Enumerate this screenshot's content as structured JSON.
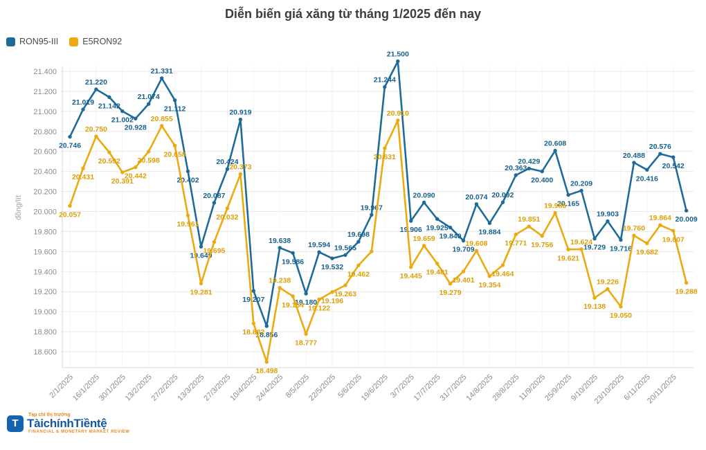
{
  "title": "Diễn biến giá xăng từ tháng 1/2025 đến nay",
  "legend": {
    "items": [
      {
        "label": "RON95-III",
        "color": "#1E6B99"
      },
      {
        "label": "E5RON92",
        "color": "#EBA912"
      }
    ]
  },
  "y_axis": {
    "title": "đồng/lít",
    "tick_labels": [
      "18.600",
      "18.800",
      "19.000",
      "19.200",
      "19.400",
      "19.600",
      "19.800",
      "20.000",
      "20.200",
      "20.400",
      "20.600",
      "20.800",
      "21.000",
      "21.200",
      "21.400"
    ]
  },
  "x_axis": {
    "tick_labels": [
      "2/1/2025",
      "16/1/2025",
      "30/1/2025",
      "13/2/2025",
      "27/2/2025",
      "13/3/2025",
      "27/3/2025",
      "10/4/2025",
      "24/4/2025",
      "8/5/2025",
      "22/5/2025",
      "5/6/2025",
      "19/6/2025",
      "3/7/2025",
      "17/7/2025",
      "31/7/2025",
      "14/8/2025",
      "28/8/2025",
      "11/9/2025",
      "25/9/2025",
      "9/10/2025",
      "23/10/2025",
      "6/11/2025",
      "20/11/2025"
    ],
    "tick_every": 2
  },
  "chart_data": {
    "type": "line",
    "title": "Diễn biến giá xăng từ tháng 1/2025 đến nay",
    "ylabel": "đồng/lít",
    "ylim": [
      18600,
      21400
    ],
    "grid": "horizontal",
    "legend_position": "top-left",
    "points_count": 48,
    "x_tick_labels": [
      "2/1/2025",
      "16/1/2025",
      "30/1/2025",
      "13/2/2025",
      "27/2/2025",
      "13/3/2025",
      "27/3/2025",
      "10/4/2025",
      "24/4/2025",
      "8/5/2025",
      "22/5/2025",
      "5/6/2025",
      "19/6/2025",
      "3/7/2025",
      "17/7/2025",
      "31/7/2025",
      "14/8/2025",
      "28/8/2025",
      "11/9/2025",
      "25/9/2025",
      "9/10/2025",
      "23/10/2025",
      "6/11/2025",
      "20/11/2025"
    ],
    "series": [
      {
        "name": "RON95-III",
        "color": "#1E6B99",
        "label_color": "#17618F",
        "values": [
          20746,
          21019,
          21220,
          21142,
          21002,
          20928,
          21074,
          21331,
          21112,
          20402,
          19649,
          20087,
          20424,
          20919,
          19207,
          18856,
          19638,
          19586,
          19180,
          19594,
          19532,
          19565,
          19698,
          19967,
          21244,
          21500,
          19906,
          20090,
          19925,
          19840,
          19709,
          20074,
          19884,
          20092,
          20363,
          20429,
          20400,
          20608,
          20165,
          20209,
          19729,
          19903,
          19716,
          20488,
          20416,
          20576,
          20542,
          20009
        ],
        "labels": [
          "20.746",
          "21.019",
          "21.220",
          "21.142",
          "21.002",
          "20.928",
          "21.074",
          "21.331",
          "21.112",
          "20.402",
          "19.649",
          "20.087",
          "20.424",
          "20.919",
          "19.207",
          "18.856",
          "19.638",
          "19.586",
          "19.180",
          "19.594",
          "19.532",
          "19.565",
          "19.698",
          "19.967",
          "21.244",
          "21.500",
          "19.906",
          "20.090",
          "19.925",
          "19.840",
          "19.709",
          "20.074",
          "19.884",
          "20.092",
          "20.363",
          "20.429",
          "20.400",
          "20.608",
          "20.165",
          "20.209",
          "19.729",
          "19.903",
          "19.716",
          "20.488",
          "20.416",
          "20.576",
          "20.542",
          "20.009"
        ]
      },
      {
        "name": "E5RON92",
        "color": "#EBA912",
        "label_color": "#DE9F07",
        "values": [
          20057,
          20431,
          20750,
          20592,
          20391,
          20442,
          20598,
          20855,
          20658,
          19961,
          19281,
          19695,
          20032,
          20373,
          18882,
          18498,
          19238,
          19154,
          18777,
          19122,
          19196,
          19263,
          19462,
          19601,
          20631,
          20910,
          19445,
          19659,
          19481,
          19279,
          19401,
          19608,
          19354,
          19464,
          19771,
          19851,
          19756,
          19986,
          19621,
          19624,
          19138,
          19226,
          19050,
          19760,
          19682,
          19864,
          19807,
          19288
        ],
        "labels": [
          "20.057",
          "20.431",
          "20.750",
          "20.592",
          "20.391",
          "20.442",
          "20.598",
          "20.855",
          "20.658",
          "19.961",
          "19.281",
          "19.695",
          "20.032",
          "20.373",
          "18.882",
          "18.498",
          "19.238",
          "19.154",
          "18.777",
          "19.122",
          "19.196",
          "19.263",
          "19.462",
          "",
          "20.631",
          "20.910",
          "19.445",
          "19.659",
          "19.481",
          "19.279",
          "19.401",
          "19.608",
          "19.354",
          "19.464",
          "19.771",
          "19.851",
          "19.756",
          "19.986",
          "19.621",
          "19.624",
          "19.138",
          "19.226",
          "19.050",
          "19.760",
          "19.682",
          "19.864",
          "19.807",
          "19.288"
        ]
      }
    ]
  },
  "footer": {
    "logo_top": "Tạp chí thị trường",
    "logo_main": "TàichínhTiềntệ",
    "logo_sub": "FINANCIAL & MONETARY MARKET REVIEW"
  }
}
